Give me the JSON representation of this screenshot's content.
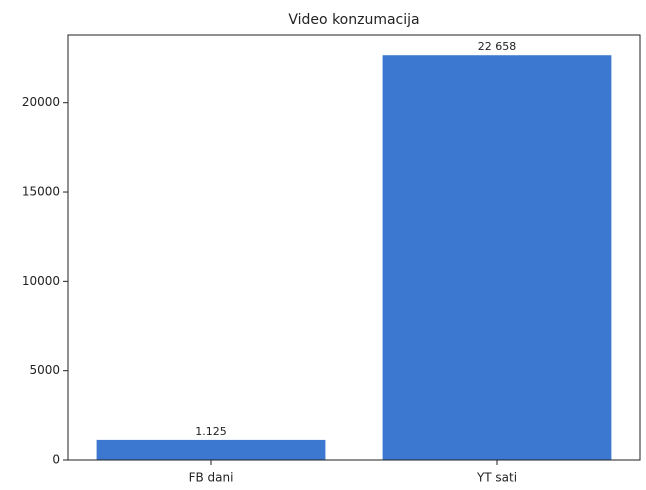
{
  "chart_data": {
    "type": "bar",
    "title": "Video konzumacija",
    "categories": [
      "FB dani",
      "YT sati"
    ],
    "values": [
      1125,
      22658
    ],
    "value_labels": [
      "1.125",
      "22 658"
    ],
    "color": "#3c78d0",
    "ylim": [
      0,
      23790
    ],
    "yticks": [
      0,
      5000,
      10000,
      15000,
      20000
    ],
    "grid": false
  }
}
